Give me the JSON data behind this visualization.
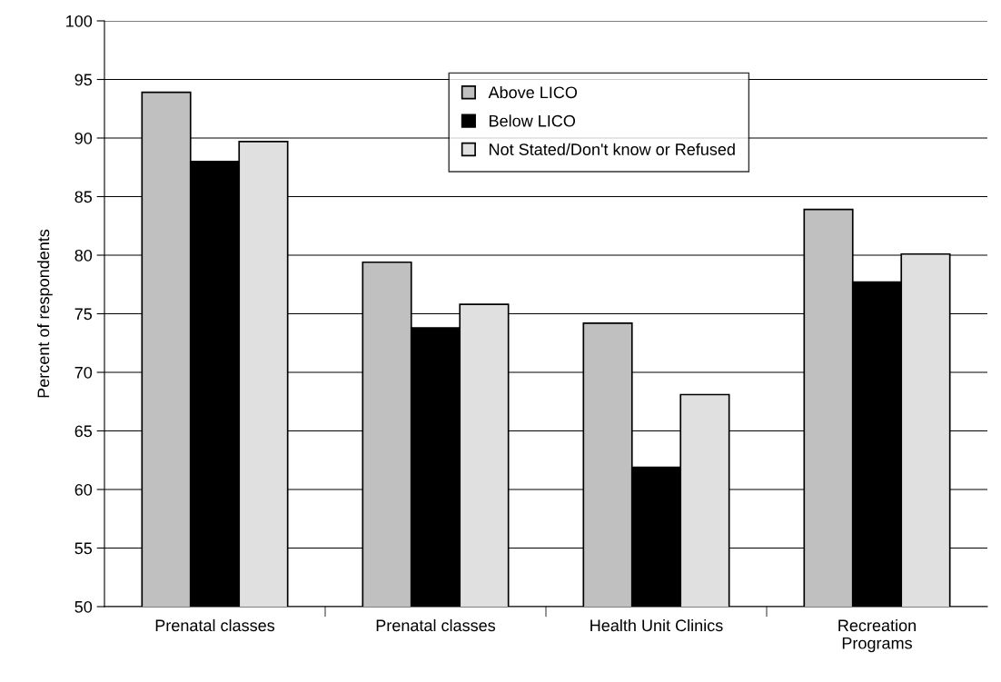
{
  "chart_data": {
    "type": "bar",
    "ylabel": "Percent of respondents",
    "categories": [
      "Prenatal classes",
      "Prenatal classes",
      "Health Unit Clinics",
      "Recreation\nPrograms"
    ],
    "series": [
      {
        "name": "Above LICO",
        "color": "#c0c0c0",
        "values": [
          93.9,
          79.4,
          74.2,
          83.9
        ]
      },
      {
        "name": "Below LICO",
        "color": "#000000",
        "values": [
          88.0,
          73.8,
          61.9,
          77.7
        ]
      },
      {
        "name": "Not Stated/Don't know or Refused",
        "color": "#e0e0e0",
        "values": [
          89.7,
          75.8,
          68.1,
          80.1
        ]
      }
    ],
    "ylim": [
      50,
      100
    ],
    "yticks": [
      50,
      55,
      60,
      65,
      70,
      75,
      80,
      85,
      90,
      95,
      100
    ],
    "grid": "y",
    "legend": "top"
  }
}
